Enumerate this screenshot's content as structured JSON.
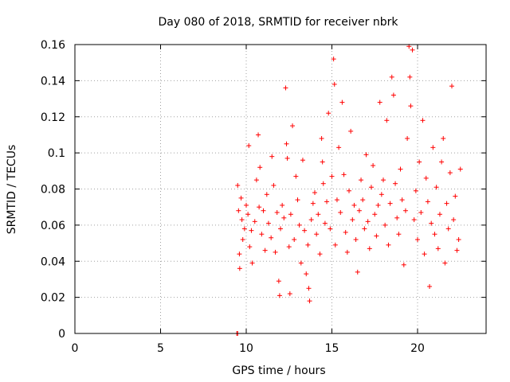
{
  "chart_data": {
    "type": "scatter",
    "title": "Day 080 of 2018, SRMTID for receiver nbrk",
    "xlabel": "GPS time / hours",
    "ylabel": "SRMTID / TECUs",
    "xlim": [
      0,
      24
    ],
    "ylim": [
      0,
      0.16
    ],
    "xticks": [
      0,
      5,
      10,
      15,
      20
    ],
    "xtick_labels": [
      "0",
      "5",
      "10",
      "15",
      "20"
    ],
    "yticks": [
      0,
      0.02,
      0.04,
      0.06,
      0.08,
      0.1,
      0.12,
      0.14,
      0.16
    ],
    "ytick_labels": [
      "0",
      "0.02",
      "0.04",
      "0.06",
      "0.08",
      "0.1",
      "0.12",
      "0.14",
      "0.16"
    ],
    "grid": true,
    "marker": "plus",
    "color": "#ff0000",
    "series": [
      {
        "name": "SRMTID",
        "x_range": [
          9.4,
          22.6
        ],
        "points": [
          [
            9.45,
            0.0
          ],
          [
            9.5,
            0.0
          ],
          [
            9.5,
            0.082
          ],
          [
            9.55,
            0.068
          ],
          [
            9.6,
            0.044
          ],
          [
            9.62,
            0.036
          ],
          [
            9.7,
            0.075
          ],
          [
            9.75,
            0.063
          ],
          [
            9.8,
            0.052
          ],
          [
            9.9,
            0.058
          ],
          [
            10.0,
            0.071
          ],
          [
            10.1,
            0.066
          ],
          [
            10.15,
            0.104
          ],
          [
            10.2,
            0.048
          ],
          [
            10.3,
            0.057
          ],
          [
            10.35,
            0.039
          ],
          [
            10.5,
            0.062
          ],
          [
            10.6,
            0.085
          ],
          [
            10.7,
            0.11
          ],
          [
            10.75,
            0.07
          ],
          [
            10.8,
            0.092
          ],
          [
            10.9,
            0.055
          ],
          [
            11.0,
            0.068
          ],
          [
            11.1,
            0.046
          ],
          [
            11.2,
            0.077
          ],
          [
            11.3,
            0.061
          ],
          [
            11.45,
            0.053
          ],
          [
            11.5,
            0.098
          ],
          [
            11.6,
            0.082
          ],
          [
            11.7,
            0.045
          ],
          [
            11.8,
            0.067
          ],
          [
            11.9,
            0.029
          ],
          [
            11.95,
            0.021
          ],
          [
            12.0,
            0.058
          ],
          [
            12.1,
            0.071
          ],
          [
            12.2,
            0.064
          ],
          [
            12.3,
            0.136
          ],
          [
            12.35,
            0.105
          ],
          [
            12.4,
            0.097
          ],
          [
            12.5,
            0.048
          ],
          [
            12.55,
            0.022
          ],
          [
            12.6,
            0.066
          ],
          [
            12.7,
            0.115
          ],
          [
            12.8,
            0.052
          ],
          [
            12.9,
            0.087
          ],
          [
            13.0,
            0.074
          ],
          [
            13.1,
            0.06
          ],
          [
            13.2,
            0.039
          ],
          [
            13.3,
            0.096
          ],
          [
            13.4,
            0.057
          ],
          [
            13.5,
            0.033
          ],
          [
            13.6,
            0.049
          ],
          [
            13.65,
            0.025
          ],
          [
            13.7,
            0.018
          ],
          [
            13.8,
            0.063
          ],
          [
            13.9,
            0.072
          ],
          [
            14.0,
            0.078
          ],
          [
            14.1,
            0.055
          ],
          [
            14.2,
            0.066
          ],
          [
            14.3,
            0.044
          ],
          [
            14.4,
            0.108
          ],
          [
            14.45,
            0.095
          ],
          [
            14.5,
            0.083
          ],
          [
            14.6,
            0.061
          ],
          [
            14.7,
            0.073
          ],
          [
            14.8,
            0.122
          ],
          [
            14.9,
            0.058
          ],
          [
            15.0,
            0.087
          ],
          [
            15.1,
            0.152
          ],
          [
            15.15,
            0.138
          ],
          [
            15.2,
            0.049
          ],
          [
            15.3,
            0.074
          ],
          [
            15.4,
            0.103
          ],
          [
            15.5,
            0.067
          ],
          [
            15.6,
            0.128
          ],
          [
            15.7,
            0.088
          ],
          [
            15.8,
            0.056
          ],
          [
            15.9,
            0.045
          ],
          [
            16.0,
            0.079
          ],
          [
            16.1,
            0.112
          ],
          [
            16.2,
            0.063
          ],
          [
            16.3,
            0.071
          ],
          [
            16.4,
            0.052
          ],
          [
            16.5,
            0.034
          ],
          [
            16.6,
            0.068
          ],
          [
            16.7,
            0.085
          ],
          [
            16.8,
            0.074
          ],
          [
            16.9,
            0.058
          ],
          [
            17.0,
            0.099
          ],
          [
            17.1,
            0.062
          ],
          [
            17.2,
            0.047
          ],
          [
            17.3,
            0.081
          ],
          [
            17.4,
            0.093
          ],
          [
            17.5,
            0.066
          ],
          [
            17.6,
            0.054
          ],
          [
            17.7,
            0.071
          ],
          [
            17.8,
            0.128
          ],
          [
            17.9,
            0.077
          ],
          [
            18.0,
            0.085
          ],
          [
            18.1,
            0.06
          ],
          [
            18.2,
            0.118
          ],
          [
            18.3,
            0.049
          ],
          [
            18.4,
            0.072
          ],
          [
            18.5,
            0.142
          ],
          [
            18.6,
            0.132
          ],
          [
            18.7,
            0.083
          ],
          [
            18.8,
            0.064
          ],
          [
            18.9,
            0.055
          ],
          [
            19.0,
            0.091
          ],
          [
            19.1,
            0.074
          ],
          [
            19.2,
            0.038
          ],
          [
            19.3,
            0.068
          ],
          [
            19.4,
            0.108
          ],
          [
            19.5,
            0.159
          ],
          [
            19.55,
            0.142
          ],
          [
            19.6,
            0.126
          ],
          [
            19.7,
            0.157
          ],
          [
            19.8,
            0.063
          ],
          [
            19.9,
            0.079
          ],
          [
            20.0,
            0.052
          ],
          [
            20.1,
            0.095
          ],
          [
            20.2,
            0.067
          ],
          [
            20.3,
            0.118
          ],
          [
            20.4,
            0.044
          ],
          [
            20.5,
            0.086
          ],
          [
            20.6,
            0.073
          ],
          [
            20.7,
            0.026
          ],
          [
            20.8,
            0.061
          ],
          [
            20.9,
            0.103
          ],
          [
            21.0,
            0.055
          ],
          [
            21.1,
            0.081
          ],
          [
            21.2,
            0.047
          ],
          [
            21.3,
            0.066
          ],
          [
            21.4,
            0.095
          ],
          [
            21.5,
            0.108
          ],
          [
            21.6,
            0.039
          ],
          [
            21.7,
            0.072
          ],
          [
            21.8,
            0.058
          ],
          [
            21.9,
            0.089
          ],
          [
            22.0,
            0.137
          ],
          [
            22.1,
            0.063
          ],
          [
            22.2,
            0.076
          ],
          [
            22.3,
            0.046
          ],
          [
            22.4,
            0.052
          ],
          [
            22.5,
            0.091
          ]
        ]
      }
    ]
  }
}
